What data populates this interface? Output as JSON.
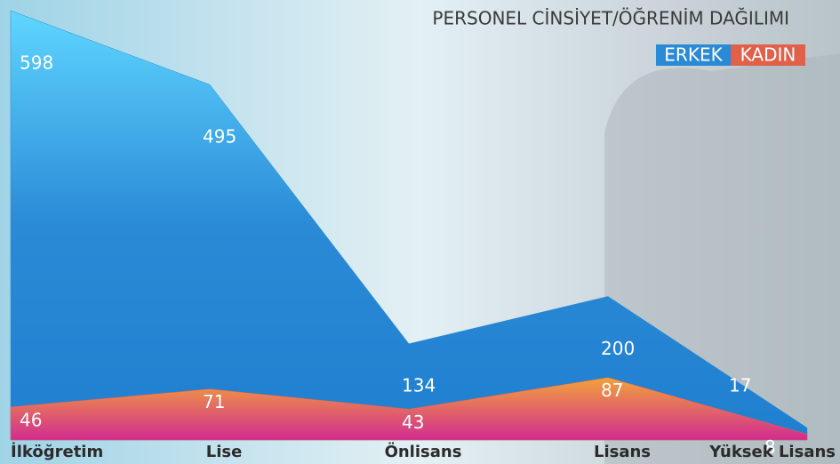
{
  "chart_data": {
    "type": "area",
    "title": "PERSONEL CİNSİYET/ÖĞRENİM DAĞILIMI",
    "categories": [
      "İlköğretim",
      "Lise",
      "Önlisans",
      "Lisans",
      "Yüksek Lisans"
    ],
    "series": [
      {
        "name": "ERKEK",
        "color": "#2a8ad6",
        "values": [
          598,
          495,
          134,
          200,
          17
        ]
      },
      {
        "name": "KADIN",
        "color": "#e0604a",
        "values": [
          46,
          71,
          43,
          87,
          8
        ]
      }
    ]
  }
}
